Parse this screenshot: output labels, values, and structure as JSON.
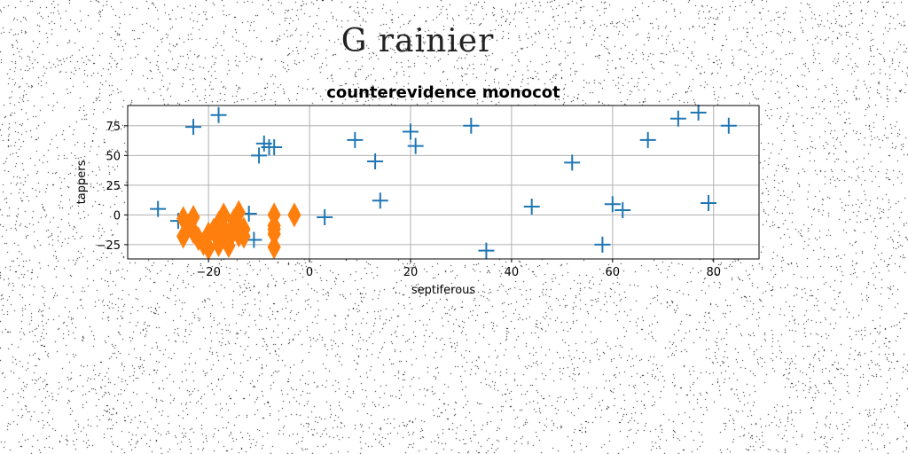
{
  "page": {
    "title": "G rainier",
    "background": "#ffffff",
    "noise_color": "#000000"
  },
  "chart_data": {
    "type": "scatter",
    "title": "counterevidence monocot",
    "xlabel": "septiferous",
    "ylabel": "tappers",
    "xlim": [
      -36,
      89
    ],
    "ylim": [
      -37,
      92
    ],
    "xticks": [
      -20,
      0,
      20,
      40,
      60,
      80
    ],
    "yticks": [
      -25,
      0,
      25,
      50,
      75
    ],
    "grid": true,
    "series": [
      {
        "marker": "plus",
        "color": "#1f77b4",
        "points": [
          [
            -30,
            5
          ],
          [
            -26,
            -5
          ],
          [
            -23,
            74
          ],
          [
            -18,
            84
          ],
          [
            -12,
            1
          ],
          [
            -11,
            -21
          ],
          [
            -10,
            50
          ],
          [
            -9,
            60
          ],
          [
            -8,
            57
          ],
          [
            -7,
            57
          ],
          [
            3,
            -2
          ],
          [
            9,
            63
          ],
          [
            13,
            45
          ],
          [
            14,
            12
          ],
          [
            20,
            70
          ],
          [
            21,
            58
          ],
          [
            32,
            75
          ],
          [
            35,
            -30
          ],
          [
            44,
            7
          ],
          [
            52,
            44
          ],
          [
            58,
            -25
          ],
          [
            60,
            9
          ],
          [
            62,
            4
          ],
          [
            67,
            63
          ],
          [
            73,
            81
          ],
          [
            77,
            86
          ],
          [
            79,
            10
          ],
          [
            83,
            75
          ]
        ]
      },
      {
        "marker": "thin_diamond",
        "color": "#ff7f0e",
        "points": [
          [
            -25,
            -3
          ],
          [
            -25,
            -18
          ],
          [
            -24,
            -9
          ],
          [
            -23,
            -2
          ],
          [
            -23,
            -14
          ],
          [
            -22,
            -20
          ],
          [
            -21,
            -24
          ],
          [
            -20,
            -16
          ],
          [
            -20,
            -28
          ],
          [
            -19,
            -13
          ],
          [
            -18,
            -7
          ],
          [
            -18,
            -21
          ],
          [
            -18,
            -25
          ],
          [
            -17,
            -11
          ],
          [
            -17,
            0
          ],
          [
            -16,
            -17
          ],
          [
            -16,
            -26
          ],
          [
            -15,
            -5
          ],
          [
            -15,
            -13
          ],
          [
            -14,
            2
          ],
          [
            -14,
            -9
          ],
          [
            -14,
            -17
          ],
          [
            -13,
            -12
          ],
          [
            -13,
            -18
          ],
          [
            -7,
            0
          ],
          [
            -7,
            -9
          ],
          [
            -7,
            -12
          ],
          [
            -7,
            -16
          ],
          [
            -7,
            -27
          ],
          [
            -3,
            0
          ]
        ]
      }
    ]
  }
}
